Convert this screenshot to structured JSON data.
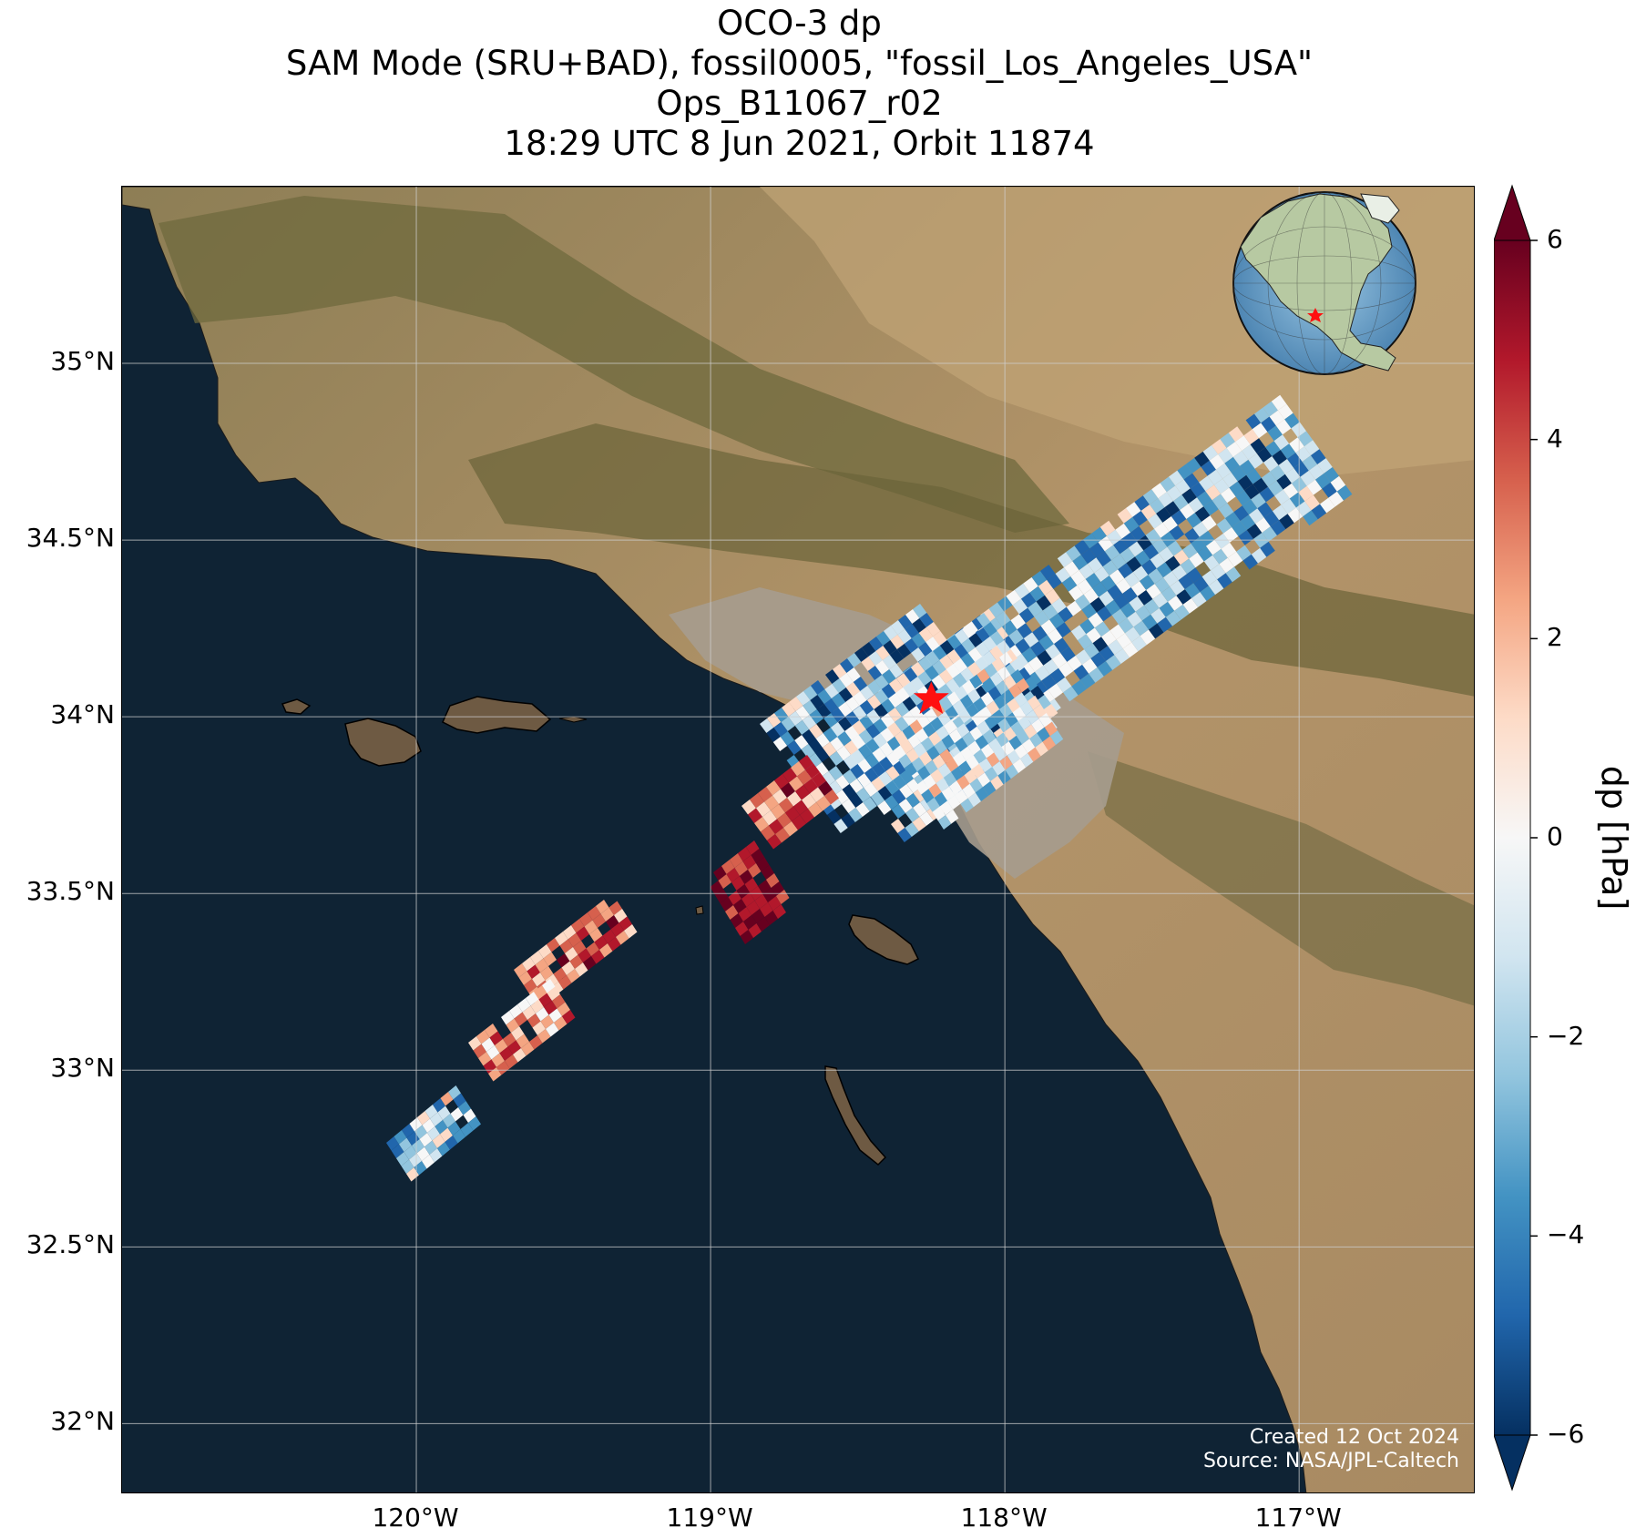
{
  "title": {
    "line1": "OCO-3 dp",
    "line2": "SAM Mode (SRU+BAD), fossil0005, \"fossil_Los_Angeles_USA\"",
    "line3": "Ops_B11067_r02",
    "line4": "18:29 UTC 8 Jun 2021, Orbit 11874"
  },
  "map": {
    "lat_ticks": [
      "35°N",
      "34.5°N",
      "34°N",
      "33.5°N",
      "33°N",
      "32.5°N",
      "32°N"
    ],
    "lon_ticks": [
      "120°W",
      "119°W",
      "118°W",
      "117°W"
    ],
    "extent": {
      "lon_min": -121.0,
      "lon_max": -116.4,
      "lat_min": 31.8,
      "lat_max": 35.5
    },
    "target_marker": {
      "name": "fossil_Los_Angeles_USA",
      "lon": -118.25,
      "lat": 34.05,
      "symbol": "red-star"
    },
    "credits": {
      "created": "Created 12 Oct 2024",
      "source": "Source: NASA/JPL-Caltech"
    },
    "colors": {
      "ocean": "#0f2334",
      "land": "#a4885f",
      "mountain": "#6f6a3e",
      "urban": "#a69c8e",
      "grid": "#cfcfcf"
    }
  },
  "colorbar": {
    "label": "dp [hPa]",
    "ticks": [
      "6",
      "4",
      "2",
      "0",
      "−2",
      "−4",
      "−6"
    ],
    "min": -6,
    "max": 6,
    "extend": "both",
    "colormap": "RdBu_r"
  },
  "inset": {
    "type": "globe",
    "marker": "red-star",
    "region": "North America"
  }
}
